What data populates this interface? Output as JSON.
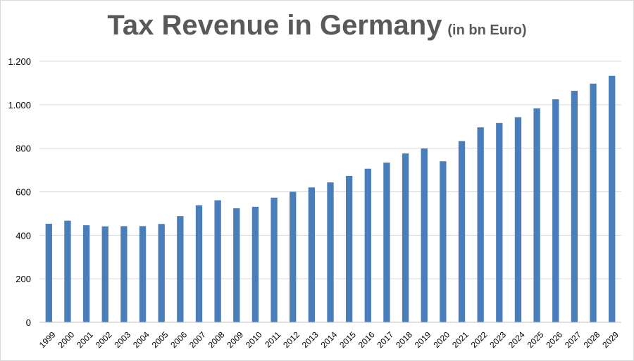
{
  "chart_data": {
    "type": "bar",
    "title": "Tax Revenue in Germany",
    "subtitle": "(in bn Euro)",
    "xlabel": "",
    "ylabel": "",
    "ylim": [
      0,
      1200
    ],
    "yticks": [
      0,
      200,
      400,
      600,
      800,
      1000,
      1200
    ],
    "ytick_labels": [
      "0",
      "200",
      "400",
      "600",
      "800",
      "1.000",
      "1.200"
    ],
    "grid": true,
    "bar_color": "#4a7ebb",
    "categories": [
      "1999",
      "2000",
      "2001",
      "2002",
      "2003",
      "2004",
      "2005",
      "2006",
      "2007",
      "2008",
      "2009",
      "2010",
      "2011",
      "2012",
      "2013",
      "2014",
      "2015",
      "2016",
      "2017",
      "2018",
      "2019",
      "2020",
      "2021",
      "2022",
      "2023",
      "2024",
      "2025",
      "2026",
      "2027",
      "2028",
      "2029"
    ],
    "values": [
      453,
      467,
      446,
      441,
      442,
      442,
      452,
      488,
      538,
      561,
      524,
      531,
      573,
      600,
      620,
      643,
      673,
      706,
      734,
      776,
      799,
      740,
      833,
      896,
      916,
      943,
      983,
      1025,
      1064,
      1097,
      1133
    ]
  }
}
